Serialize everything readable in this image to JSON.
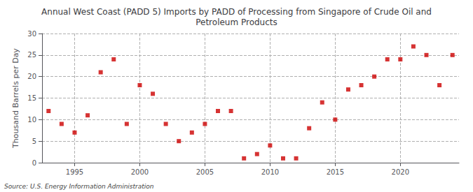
{
  "chart_data": {
    "type": "scatter",
    "title": "Annual West Coast (PADD 5) Imports by PADD of Processing from Singapore of Crude Oil and\nPetroleum Products",
    "ylabel": "Thousand Barrels per Day",
    "annotations": [
      "Source: U.S. Energy Information Administration"
    ],
    "x": [
      1993,
      1994,
      1995,
      1996,
      1997,
      1998,
      1999,
      2000,
      2001,
      2002,
      2003,
      2004,
      2005,
      2006,
      2007,
      2008,
      2009,
      2010,
      2011,
      2012,
      2013,
      2014,
      2015,
      2016,
      2017,
      2018,
      2019,
      2020,
      2021,
      2022,
      2023,
      2024
    ],
    "values": [
      12,
      9,
      7,
      11,
      21,
      24,
      9,
      18,
      16,
      9,
      5,
      7,
      9,
      12,
      12,
      1,
      2,
      4,
      1,
      1,
      8,
      14,
      10,
      17,
      18,
      20,
      24,
      24,
      27,
      25,
      18,
      25
    ],
    "color": "#cc0000",
    "marker": "square",
    "xlim": [
      1992.5,
      2024.5
    ],
    "ylim": [
      0,
      30
    ],
    "xticks": [
      1995,
      2000,
      2005,
      2010,
      2015,
      2020
    ],
    "yticks": [
      0,
      5,
      10,
      15,
      20,
      25,
      30
    ],
    "grid": true
  }
}
